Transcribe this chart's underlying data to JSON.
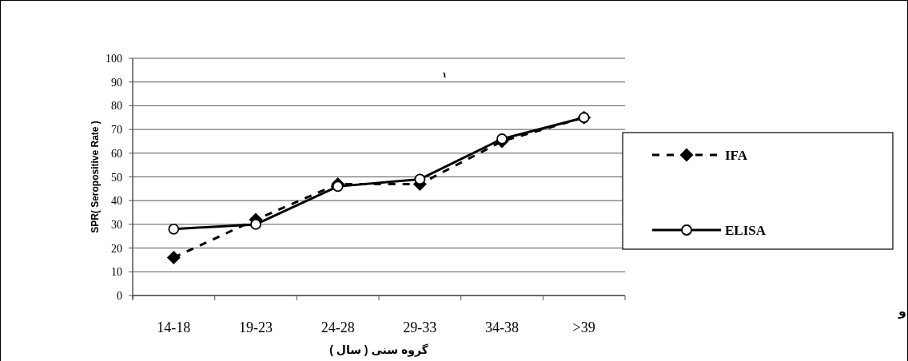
{
  "chart_data": {
    "type": "line",
    "categories": [
      "14-18",
      "19-23",
      "24-28",
      "29-33",
      "34-38",
      ">39"
    ],
    "series": [
      {
        "name": "IFA",
        "color": "#000000",
        "marker": "diamond",
        "line_style": "dashed",
        "values": [
          16,
          32,
          47,
          47,
          65,
          75
        ]
      },
      {
        "name": "ELISA",
        "color": "#000000",
        "marker": "circle",
        "line_style": "solid",
        "values": [
          28,
          30,
          46,
          49,
          66,
          75
        ]
      }
    ],
    "xlabel": "گروه سنی ( سال )",
    "ylabel": "SPR( Seropositive Rate )",
    "ylim": [
      0,
      100
    ],
    "yticks": [
      0,
      10,
      20,
      30,
      40,
      50,
      60,
      70,
      80,
      90,
      100
    ],
    "grid": "y",
    "legend": "right",
    "annotations": [
      "۱",
      "و"
    ]
  }
}
